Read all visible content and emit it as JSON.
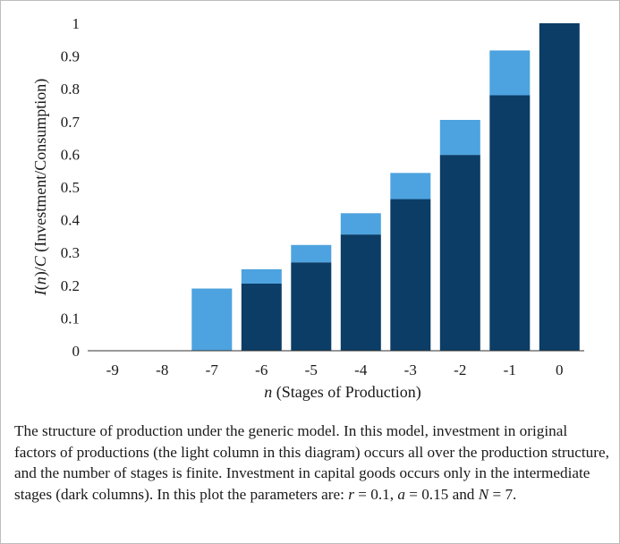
{
  "chart_data": {
    "type": "bar",
    "stacked": true,
    "categories": [
      "-9",
      "-8",
      "-7",
      "-6",
      "-5",
      "-4",
      "-3",
      "-2",
      "-1",
      "0"
    ],
    "series": [
      {
        "name": "Investment in capital goods (dark columns)",
        "color": "#0b3d66",
        "values": [
          0,
          0,
          0,
          0.205,
          0.27,
          0.355,
          0.463,
          0.598,
          0.78,
          1.0
        ]
      },
      {
        "name": "Investment in original factors (light column)",
        "color": "#4da3df",
        "values": [
          0,
          0,
          0.19,
          0.044,
          0.053,
          0.065,
          0.08,
          0.107,
          0.137,
          0
        ]
      }
    ],
    "xlabel": {
      "italic": "n",
      "rest": " (Stages of Production)"
    },
    "ylabel": {
      "p1": "I",
      "p2": "(",
      "p3": "n",
      "p4": ")/",
      "p5": "C",
      "p6": " (Investment/Consumption)"
    },
    "yticks": [
      "0",
      "0.1",
      "0.2",
      "0.3",
      "0.4",
      "0.5",
      "0.6",
      "0.7",
      "0.8",
      "0.9",
      "1"
    ],
    "ylim": [
      0,
      1
    ],
    "grid": false
  },
  "caption": {
    "text1": "The structure of production under the generic model. In this model, investment in original factors of productions (the light column in this diagram) occurs all over the production structure, and the number of stages is finite. Investment in capital goods occurs only in the intermediate stages (dark columns). In this plot the parameters are: ",
    "r_sym": "r",
    "r_val": " = 0.1, ",
    "a_sym": "a",
    "a_val": " = 0.15 and ",
    "n_sym": "N",
    "n_val": " = 7."
  }
}
